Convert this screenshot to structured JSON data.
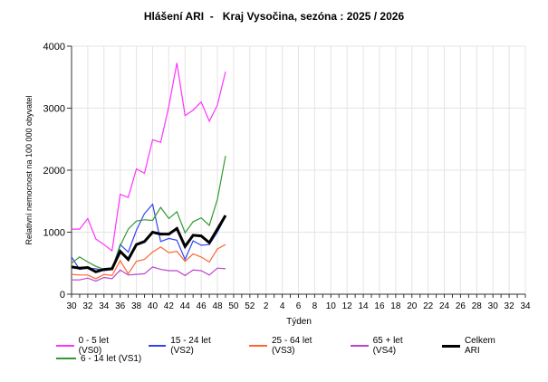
{
  "header": {
    "title": "Hlášení ARI  -   Kraj Vysočina, sezóna : 2025 / 2026"
  },
  "axes": {
    "ylabel": "Relativní nemocnost na 100 000 obyvatel",
    "xlabel": "Týden",
    "y_ticks": [
      "0",
      "1000",
      "2000",
      "3000",
      "4000"
    ],
    "x_ticks": [
      "30",
      "32",
      "34",
      "36",
      "38",
      "40",
      "42",
      "44",
      "46",
      "48",
      "50",
      "52",
      "2",
      "4",
      "6",
      "8",
      "10",
      "12",
      "14",
      "16",
      "18",
      "20",
      "22",
      "24",
      "26",
      "28",
      "30",
      "32",
      "34"
    ]
  },
  "legend": {
    "items": [
      {
        "label": "0 - 5 let (VS0)",
        "color": "#ff33ff"
      },
      {
        "label": "15 - 24 let (VS2)",
        "color": "#3344ee"
      },
      {
        "label": "25 - 64 let (VS3)",
        "color": "#ff6633"
      },
      {
        "label": "65 + let (VS4)",
        "color": "#bb44cc"
      },
      {
        "label": "Celkem ARI",
        "color": "#000000"
      },
      {
        "label": "6 - 14 let (VS1)",
        "color": "#339933"
      }
    ]
  },
  "chart_data": {
    "type": "line",
    "title": "Hlášení ARI  -   Kraj Vysočina, sezóna : 2025 / 2026",
    "xlabel": "Týden",
    "ylabel": "Relativní nemocnost na 100 000 obyvatel",
    "ylim": [
      0,
      4000
    ],
    "xlim_weeks": [
      "30 (2025)",
      "34 (2026)"
    ],
    "grid": true,
    "legend_position": "bottom",
    "x": [
      30,
      31,
      32,
      33,
      34,
      35,
      36,
      37,
      38,
      39,
      40,
      41,
      42,
      43,
      44,
      45,
      46,
      47,
      48,
      49
    ],
    "series": [
      {
        "name": "0 - 5 let (VS0)",
        "color": "#ff33ff",
        "values": [
          1050,
          1050,
          1220,
          890,
          800,
          700,
          1610,
          1560,
          2020,
          1950,
          2490,
          2450,
          3030,
          3730,
          2880,
          2970,
          3100,
          2790,
          3050,
          3590
        ]
      },
      {
        "name": "6 - 14 let (VS1)",
        "color": "#339933",
        "values": [
          500,
          600,
          520,
          450,
          400,
          400,
          780,
          1050,
          1180,
          1200,
          1190,
          1400,
          1220,
          1330,
          990,
          1170,
          1230,
          1110,
          1530,
          2230
        ]
      },
      {
        "name": "15 - 24 let (VS2)",
        "color": "#3344ee",
        "values": [
          600,
          400,
          420,
          410,
          380,
          400,
          800,
          680,
          1030,
          1300,
          1450,
          850,
          900,
          870,
          560,
          860,
          790,
          800,
          1000,
          1250
        ]
      },
      {
        "name": "25 - 64 let (VS3)",
        "color": "#ff6633",
        "values": [
          320,
          310,
          310,
          250,
          320,
          300,
          540,
          330,
          530,
          560,
          680,
          760,
          670,
          690,
          530,
          650,
          600,
          520,
          730,
          800
        ]
      },
      {
        "name": "65 + let (VS4)",
        "color": "#bb44cc",
        "values": [
          230,
          230,
          260,
          210,
          270,
          250,
          390,
          310,
          320,
          330,
          440,
          400,
          380,
          380,
          300,
          390,
          380,
          310,
          420,
          410
        ]
      },
      {
        "name": "Celkem ARI",
        "color": "#000000",
        "values": [
          440,
          420,
          430,
          360,
          400,
          410,
          690,
          560,
          800,
          850,
          1000,
          970,
          970,
          1060,
          770,
          950,
          940,
          830,
          1050,
          1270
        ]
      }
    ]
  }
}
